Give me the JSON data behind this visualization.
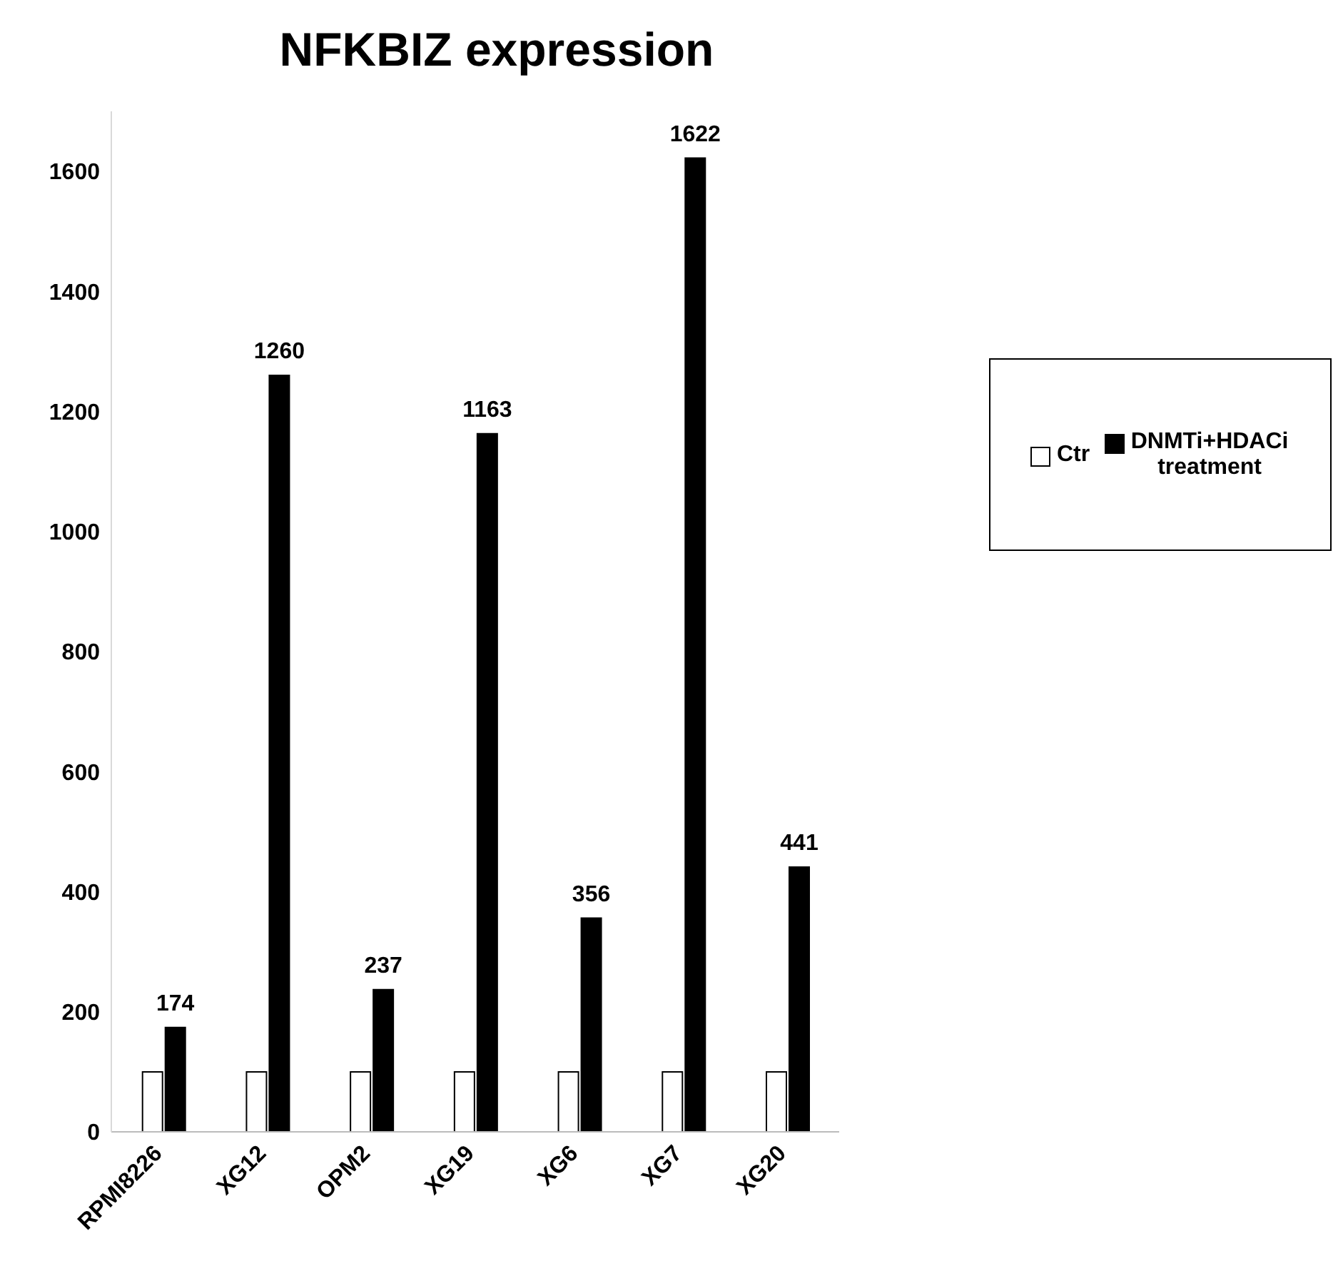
{
  "chart_data": {
    "type": "bar",
    "title": "NFKBIZ expression",
    "categories": [
      "RPMI8226",
      "XG12",
      "OPM2",
      "XG19",
      "XG6",
      "XG7",
      "XG20"
    ],
    "series": [
      {
        "name": "Ctr",
        "color": "#ffffff",
        "values": [
          100,
          100,
          100,
          100,
          100,
          100,
          100
        ]
      },
      {
        "name": "DNMTi+HDACi treatment",
        "color": "#000000",
        "values": [
          174,
          1260,
          237,
          1163,
          356,
          1622,
          441
        ],
        "value_labels": [
          "174",
          "1260",
          "237",
          "1163",
          "356",
          "1622",
          "441"
        ]
      }
    ],
    "ylim": [
      0,
      1700
    ],
    "yticks": [
      0,
      200,
      400,
      600,
      800,
      1000,
      1200,
      1400,
      1600
    ],
    "grid": false,
    "legend": "right"
  }
}
